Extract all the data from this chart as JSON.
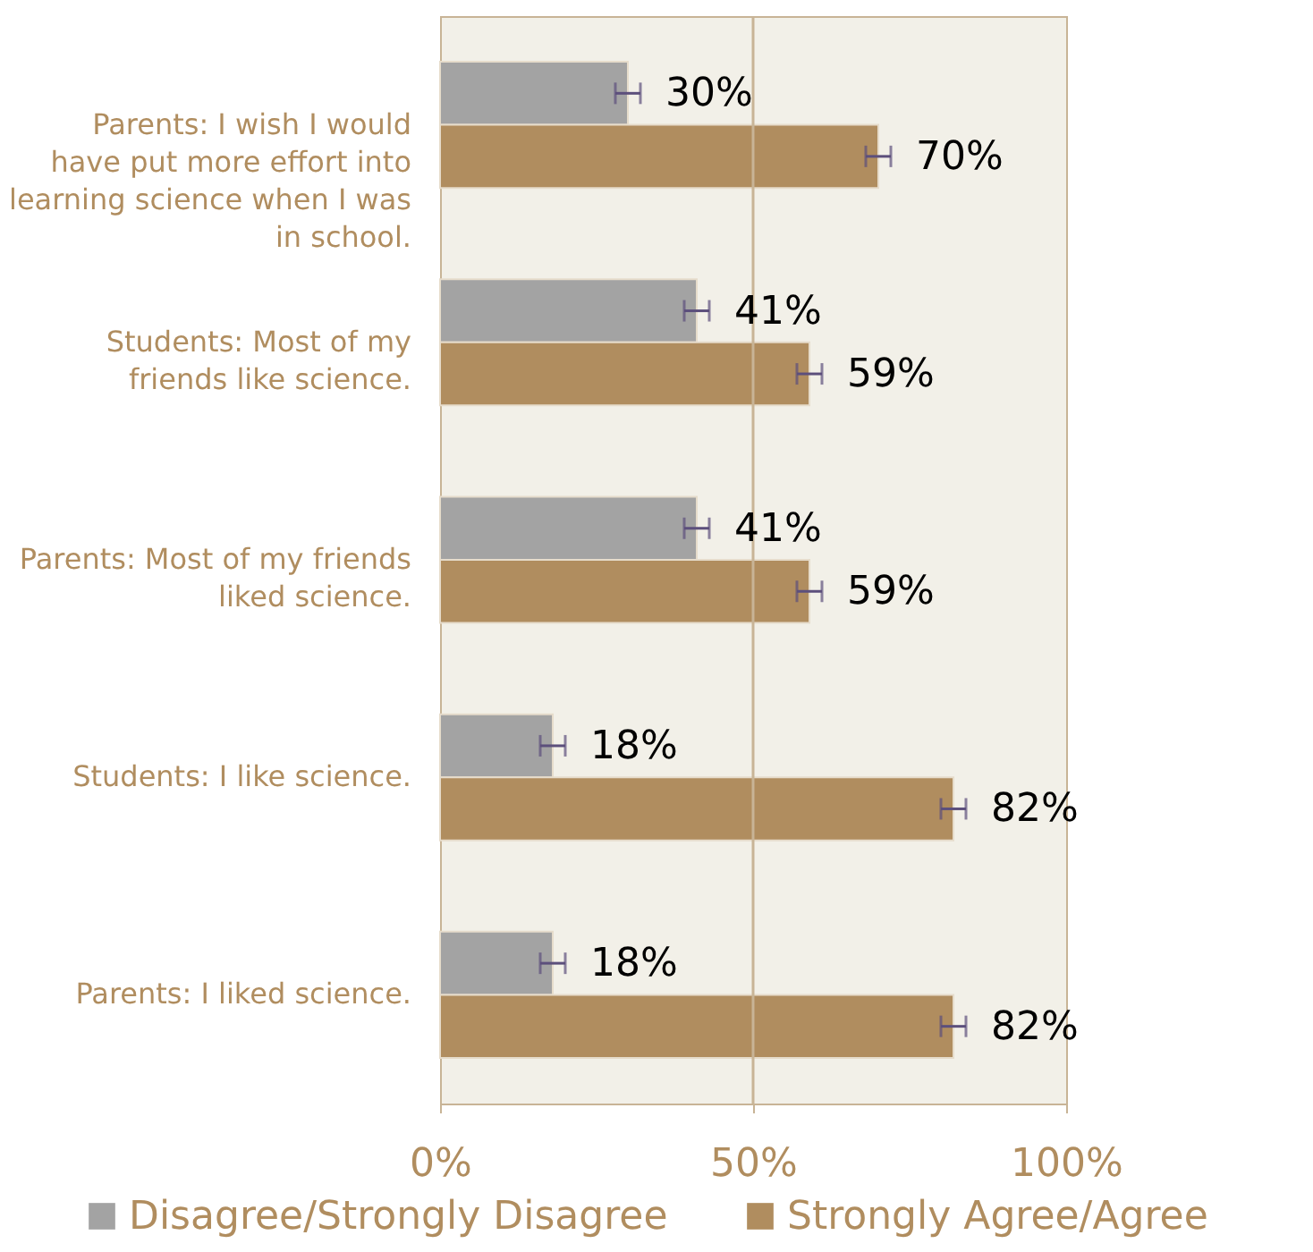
{
  "chart_data": {
    "type": "bar",
    "orientation": "horizontal",
    "categories": [
      "Parents: I wish I would have put more effort into learning science when I was in school.",
      "Students: Most of my friends like science.",
      "Parents: Most of my friends liked science.",
      "Students: I like science.",
      "Parents: I liked science."
    ],
    "series": [
      {
        "name": "Disagree/Strongly Disagree",
        "color": "#a3a3a3",
        "values": [
          30,
          41,
          41,
          18,
          18
        ],
        "errors": [
          2,
          2,
          2,
          2,
          2
        ],
        "value_labels": [
          "30%",
          "41%",
          "41%",
          "18%",
          "18%"
        ]
      },
      {
        "name": "Strongly Agree/Agree",
        "color": "#b08d5f",
        "values": [
          70,
          59,
          59,
          82,
          82
        ],
        "errors": [
          2,
          2,
          2,
          2,
          2
        ],
        "value_labels": [
          "70%",
          "59%",
          "59%",
          "82%",
          "82%"
        ]
      }
    ],
    "xlim": [
      0,
      100
    ],
    "xticks": [
      {
        "value": 0,
        "label": "0%"
      },
      {
        "value": 50,
        "label": "50%"
      },
      {
        "value": 100,
        "label": "100%"
      }
    ],
    "ref_lines": [
      {
        "axis": "x",
        "value": 50,
        "color": "#c8b496"
      }
    ],
    "legend": "bottom"
  }
}
